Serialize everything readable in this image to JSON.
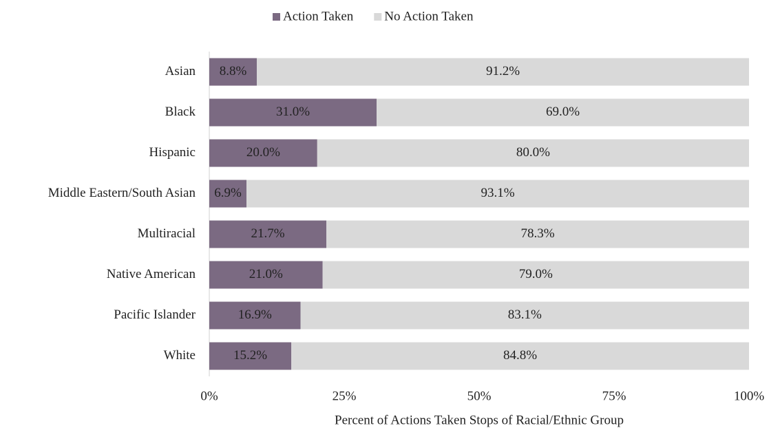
{
  "chart_data": {
    "type": "stacked_barh",
    "xlabel": "Percent of Actions Taken Stops of Racial/Ethnic Group",
    "categories": [
      "Asian",
      "Black",
      "Hispanic",
      "Middle Eastern/South Asian",
      "Multiracial",
      "Native American",
      "Pacific Islander",
      "White"
    ],
    "series": [
      {
        "name": "Action Taken",
        "color": "#7b6a82",
        "label_color": "#ffffff",
        "values": [
          8.8,
          31.0,
          20.0,
          6.9,
          21.7,
          21.0,
          16.9,
          15.2
        ],
        "value_labels": [
          "8.8%",
          "31.0%",
          "20.0%",
          "6.9%",
          "21.7%",
          "21.0%",
          "16.9%",
          "15.2%"
        ]
      },
      {
        "name": "No Action Taken",
        "color": "#d9d9d9",
        "label_color": "#222222",
        "values": [
          91.2,
          69.0,
          80.0,
          93.1,
          78.3,
          79.0,
          83.1,
          84.8
        ],
        "value_labels": [
          "91.2%",
          "69.0%",
          "80.0%",
          "93.1%",
          "78.3%",
          "79.0%",
          "83.1%",
          "84.8%"
        ]
      }
    ],
    "xlim": [
      0,
      100
    ],
    "xticks": [
      {
        "value": 0,
        "label": "0%"
      },
      {
        "value": 25,
        "label": "25%"
      },
      {
        "value": 50,
        "label": "50%"
      },
      {
        "value": 75,
        "label": "75%"
      },
      {
        "value": 100,
        "label": "100%"
      }
    ],
    "legend": "top"
  }
}
